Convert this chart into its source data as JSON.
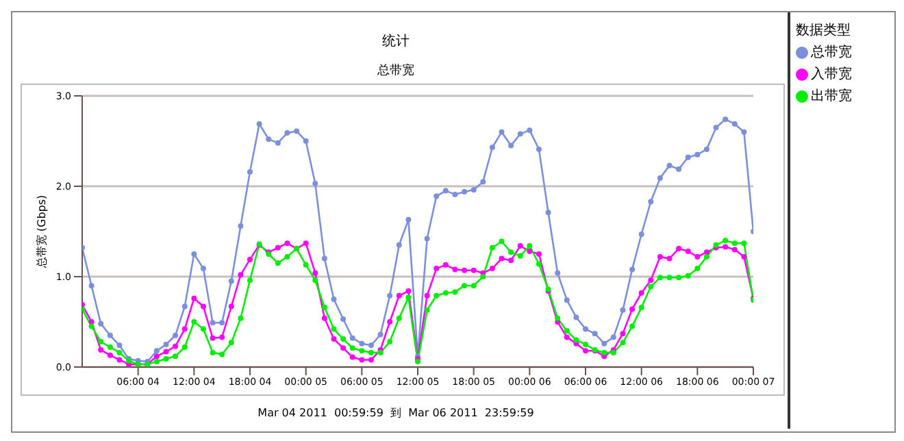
{
  "chart_data": {
    "type": "line",
    "title": "统计",
    "subtitle": "总带宽",
    "ylabel": "总带宽 (Gbps)",
    "legend_title": "数据类型",
    "annotations": [
      "Mar 04 2011  00:59:59  到  Mar 06 2011  23:59:59"
    ],
    "x": [
      "2011-03-04T00:00",
      "2011-03-04T01:00",
      "2011-03-04T02:00",
      "2011-03-04T03:00",
      "2011-03-04T04:00",
      "2011-03-04T05:00",
      "2011-03-04T06:00",
      "2011-03-04T07:00",
      "2011-03-04T08:00",
      "2011-03-04T09:00",
      "2011-03-04T10:00",
      "2011-03-04T11:00",
      "2011-03-04T12:00",
      "2011-03-04T13:00",
      "2011-03-04T14:00",
      "2011-03-04T15:00",
      "2011-03-04T16:00",
      "2011-03-04T17:00",
      "2011-03-04T18:00",
      "2011-03-04T19:00",
      "2011-03-04T20:00",
      "2011-03-04T21:00",
      "2011-03-04T22:00",
      "2011-03-04T23:00",
      "2011-03-05T00:00",
      "2011-03-05T01:00",
      "2011-03-05T02:00",
      "2011-03-05T03:00",
      "2011-03-05T04:00",
      "2011-03-05T05:00",
      "2011-03-05T06:00",
      "2011-03-05T07:00",
      "2011-03-05T08:00",
      "2011-03-05T09:00",
      "2011-03-05T10:00",
      "2011-03-05T11:00",
      "2011-03-05T12:00",
      "2011-03-05T13:00",
      "2011-03-05T14:00",
      "2011-03-05T15:00",
      "2011-03-05T16:00",
      "2011-03-05T17:00",
      "2011-03-05T18:00",
      "2011-03-05T19:00",
      "2011-03-05T20:00",
      "2011-03-05T21:00",
      "2011-03-05T22:00",
      "2011-03-05T23:00",
      "2011-03-06T00:00",
      "2011-03-06T01:00",
      "2011-03-06T02:00",
      "2011-03-06T03:00",
      "2011-03-06T04:00",
      "2011-03-06T05:00",
      "2011-03-06T06:00",
      "2011-03-06T07:00",
      "2011-03-06T08:00",
      "2011-03-06T09:00",
      "2011-03-06T10:00",
      "2011-03-06T11:00",
      "2011-03-06T12:00",
      "2011-03-06T13:00",
      "2011-03-06T14:00",
      "2011-03-06T15:00",
      "2011-03-06T16:00",
      "2011-03-06T17:00",
      "2011-03-06T18:00",
      "2011-03-06T19:00",
      "2011-03-06T20:00",
      "2011-03-06T21:00",
      "2011-03-06T22:00",
      "2011-03-06T23:00",
      "2011-03-07T00:00"
    ],
    "xlim": [
      "2011-03-04T00:00",
      "2011-03-07T00:00"
    ],
    "xticks": [
      {
        "value": "2011-03-04T06:00",
        "label": "06:00 04"
      },
      {
        "value": "2011-03-04T12:00",
        "label": "12:00 04"
      },
      {
        "value": "2011-03-04T18:00",
        "label": "18:00 04"
      },
      {
        "value": "2011-03-05T00:00",
        "label": "00:00 05"
      },
      {
        "value": "2011-03-05T06:00",
        "label": "06:00 05"
      },
      {
        "value": "2011-03-05T12:00",
        "label": "12:00 05"
      },
      {
        "value": "2011-03-05T18:00",
        "label": "18:00 05"
      },
      {
        "value": "2011-03-06T00:00",
        "label": "00:00 06"
      },
      {
        "value": "2011-03-06T06:00",
        "label": "06:00 06"
      },
      {
        "value": "2011-03-06T12:00",
        "label": "12:00 06"
      },
      {
        "value": "2011-03-06T18:00",
        "label": "18:00 06"
      },
      {
        "value": "2011-03-07T00:00",
        "label": "00:00 07"
      }
    ],
    "ylim": [
      0,
      3
    ],
    "yticks": [
      {
        "value": 0,
        "label": "0.0"
      },
      {
        "value": 1,
        "label": "1.0"
      },
      {
        "value": 2,
        "label": "2.0"
      },
      {
        "value": 3,
        "label": "3.0"
      }
    ],
    "grid": "y",
    "legend": "right",
    "marker": "circle",
    "line_style": "solid",
    "series": [
      {
        "name": "总带宽",
        "color": "#7b8fdc",
        "values": [
          1.32,
          0.9,
          0.48,
          0.35,
          0.24,
          0.09,
          0.07,
          0.06,
          0.18,
          0.25,
          0.35,
          0.67,
          1.25,
          1.09,
          0.49,
          0.49,
          0.95,
          1.56,
          2.16,
          2.69,
          2.52,
          2.48,
          2.59,
          2.61,
          2.5,
          2.03,
          1.2,
          0.75,
          0.53,
          0.32,
          0.26,
          0.24,
          0.36,
          0.79,
          1.35,
          1.63,
          0.12,
          1.42,
          1.89,
          1.95,
          1.91,
          1.94,
          1.96,
          2.05,
          2.43,
          2.6,
          2.45,
          2.58,
          2.62,
          2.41,
          1.71,
          1.04,
          0.74,
          0.55,
          0.42,
          0.37,
          0.26,
          0.33,
          0.63,
          1.08,
          1.47,
          1.83,
          2.09,
          2.23,
          2.19,
          2.32,
          2.35,
          2.41,
          2.65,
          2.74,
          2.69,
          2.6,
          1.5
        ]
      },
      {
        "name": "入带宽",
        "color": "#ff00ff",
        "values": [
          0.69,
          0.5,
          0.19,
          0.13,
          0.08,
          0.03,
          0.03,
          0.03,
          0.12,
          0.17,
          0.23,
          0.42,
          0.76,
          0.67,
          0.32,
          0.33,
          0.67,
          1.02,
          1.19,
          1.35,
          1.27,
          1.32,
          1.37,
          1.31,
          1.37,
          1.04,
          0.54,
          0.31,
          0.21,
          0.11,
          0.08,
          0.08,
          0.19,
          0.5,
          0.79,
          0.84,
          0.09,
          0.79,
          1.09,
          1.13,
          1.08,
          1.07,
          1.07,
          1.04,
          1.09,
          1.2,
          1.18,
          1.34,
          1.28,
          1.25,
          0.84,
          0.5,
          0.33,
          0.26,
          0.18,
          0.18,
          0.12,
          0.19,
          0.37,
          0.64,
          0.82,
          0.96,
          1.22,
          1.2,
          1.31,
          1.28,
          1.22,
          1.27,
          1.32,
          1.33,
          1.3,
          1.22,
          0.76
        ]
      },
      {
        "name": "出带宽",
        "color": "#00ee00",
        "values": [
          0.64,
          0.45,
          0.28,
          0.22,
          0.16,
          0.07,
          0.03,
          0.03,
          0.06,
          0.09,
          0.12,
          0.22,
          0.5,
          0.42,
          0.16,
          0.14,
          0.27,
          0.54,
          0.96,
          1.36,
          1.25,
          1.15,
          1.22,
          1.31,
          1.13,
          0.96,
          0.66,
          0.42,
          0.31,
          0.21,
          0.18,
          0.16,
          0.16,
          0.28,
          0.54,
          0.77,
          0.06,
          0.63,
          0.79,
          0.82,
          0.83,
          0.9,
          0.9,
          1.0,
          1.32,
          1.39,
          1.27,
          1.23,
          1.34,
          1.14,
          0.86,
          0.54,
          0.4,
          0.3,
          0.25,
          0.19,
          0.16,
          0.16,
          0.27,
          0.45,
          0.66,
          0.89,
          0.99,
          0.99,
          0.99,
          1.01,
          1.09,
          1.22,
          1.35,
          1.4,
          1.37,
          1.37,
          0.74
        ]
      }
    ]
  }
}
